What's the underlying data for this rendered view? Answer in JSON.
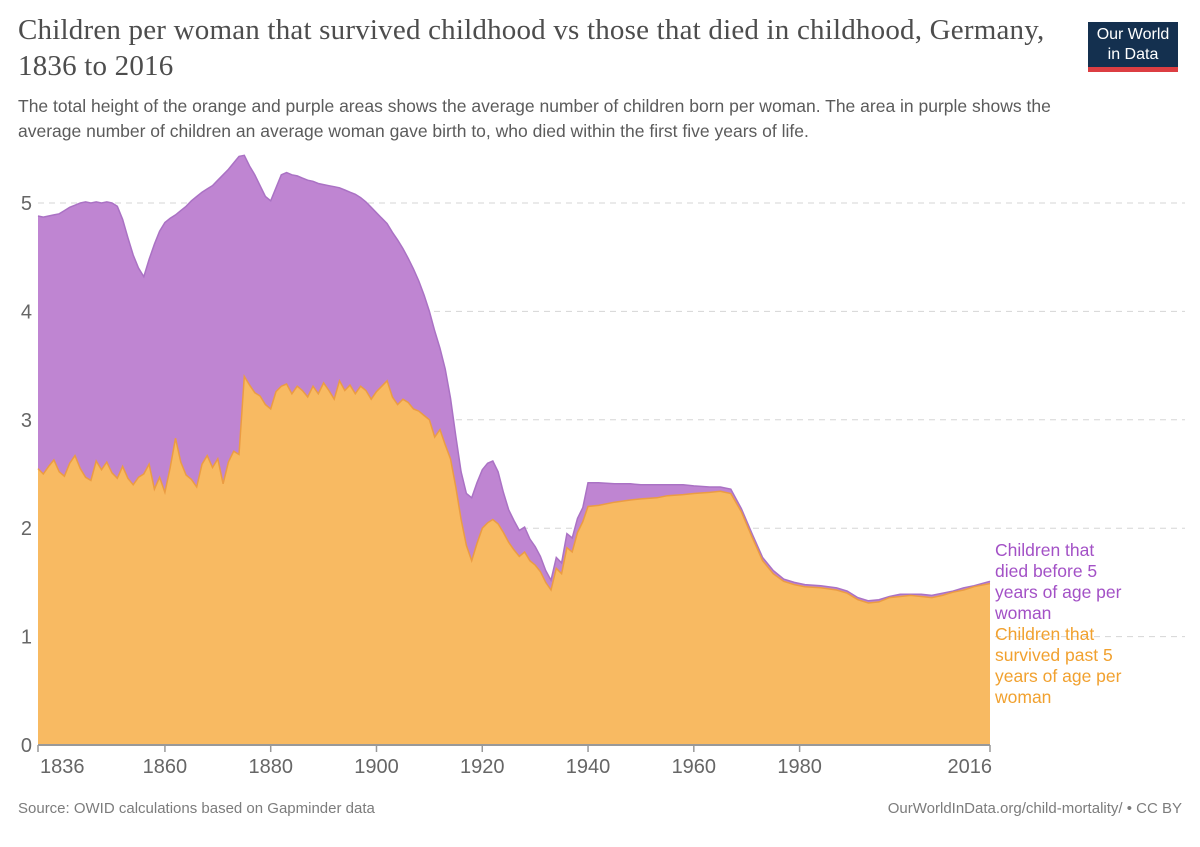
{
  "header": {
    "title": "Children per woman that survived childhood vs those that died in childhood, Germany, 1836 to 2016",
    "subtitle": "The total height of the orange and purple areas shows the average number of children born per woman. The area in purple shows the average number of children an average woman gave birth to, who died within the first five years of life.",
    "logo": {
      "line1": "Our World",
      "line2": "in Data",
      "bg": "#14304f",
      "accent": "#dc3e42"
    }
  },
  "legend": {
    "died": {
      "label": "Children that died before 5 years of age per woman",
      "color": "#a351c6"
    },
    "survived": {
      "label": "Children that survived past 5 years of age per woman",
      "color": "#f1a12f"
    }
  },
  "footer": {
    "source": "Source: OWID calculations based on Gapminder data",
    "link": "OurWorldInData.org/child-mortality/ • CC BY"
  },
  "chart_data": {
    "type": "area",
    "stacked": true,
    "title": "Children per woman that survived childhood vs those that died in childhood, Germany, 1836 to 2016",
    "xlabel": "",
    "ylabel": "",
    "xlim": [
      1836,
      2016
    ],
    "ylim": [
      0,
      5.5
    ],
    "x_ticks": [
      1836,
      1860,
      1880,
      1900,
      1920,
      1940,
      1960,
      1980,
      2016
    ],
    "y_ticks": [
      0,
      1,
      2,
      3,
      4,
      5
    ],
    "grid": "horizontal-dashed",
    "legend_position": "right",
    "axis_color": "#666666",
    "gridline_color": "#d5d5d5",
    "x": [
      1836,
      1837,
      1838,
      1839,
      1840,
      1841,
      1842,
      1843,
      1844,
      1845,
      1846,
      1847,
      1848,
      1849,
      1850,
      1851,
      1852,
      1853,
      1854,
      1855,
      1856,
      1857,
      1858,
      1859,
      1860,
      1861,
      1862,
      1863,
      1864,
      1865,
      1866,
      1867,
      1868,
      1869,
      1870,
      1871,
      1872,
      1873,
      1874,
      1875,
      1876,
      1877,
      1878,
      1879,
      1880,
      1881,
      1882,
      1883,
      1884,
      1885,
      1886,
      1887,
      1888,
      1889,
      1890,
      1891,
      1892,
      1893,
      1894,
      1895,
      1896,
      1897,
      1898,
      1899,
      1900,
      1901,
      1902,
      1903,
      1904,
      1905,
      1906,
      1907,
      1908,
      1909,
      1910,
      1911,
      1912,
      1913,
      1914,
      1915,
      1916,
      1917,
      1918,
      1919,
      1920,
      1921,
      1922,
      1923,
      1924,
      1925,
      1926,
      1927,
      1928,
      1929,
      1930,
      1931,
      1932,
      1933,
      1934,
      1935,
      1936,
      1937,
      1938,
      1939,
      1940,
      1942,
      1945,
      1948,
      1950,
      1953,
      1955,
      1958,
      1960,
      1963,
      1965,
      1967,
      1969,
      1971,
      1973,
      1975,
      1977,
      1979,
      1981,
      1984,
      1987,
      1989,
      1991,
      1993,
      1995,
      1997,
      1999,
      2001,
      2003,
      2005,
      2007,
      2009,
      2011,
      2013,
      2016
    ],
    "series": [
      {
        "name": "Children that survived past 5 years of age per woman",
        "fill": "#f8ba62",
        "stroke": "#eb9c43",
        "values": [
          2.55,
          2.5,
          2.57,
          2.63,
          2.52,
          2.48,
          2.6,
          2.67,
          2.55,
          2.47,
          2.44,
          2.62,
          2.54,
          2.61,
          2.51,
          2.46,
          2.57,
          2.46,
          2.4,
          2.47,
          2.5,
          2.59,
          2.36,
          2.47,
          2.33,
          2.56,
          2.83,
          2.61,
          2.49,
          2.45,
          2.38,
          2.59,
          2.67,
          2.56,
          2.64,
          2.41,
          2.61,
          2.71,
          2.68,
          3.4,
          3.32,
          3.25,
          3.22,
          3.14,
          3.1,
          3.26,
          3.31,
          3.33,
          3.24,
          3.31,
          3.27,
          3.21,
          3.31,
          3.24,
          3.34,
          3.27,
          3.19,
          3.36,
          3.27,
          3.32,
          3.24,
          3.31,
          3.27,
          3.19,
          3.26,
          3.31,
          3.36,
          3.21,
          3.14,
          3.19,
          3.16,
          3.1,
          3.08,
          3.04,
          3.0,
          2.84,
          2.91,
          2.77,
          2.64,
          2.38,
          2.08,
          1.84,
          1.7,
          1.86,
          2.0,
          2.05,
          2.08,
          2.04,
          1.96,
          1.87,
          1.8,
          1.74,
          1.78,
          1.7,
          1.66,
          1.6,
          1.5,
          1.43,
          1.63,
          1.58,
          1.82,
          1.78,
          1.96,
          2.06,
          2.2,
          2.21,
          2.24,
          2.26,
          2.27,
          2.28,
          2.3,
          2.31,
          2.32,
          2.33,
          2.34,
          2.32,
          2.15,
          1.92,
          1.7,
          1.58,
          1.51,
          1.48,
          1.46,
          1.45,
          1.43,
          1.4,
          1.34,
          1.31,
          1.32,
          1.36,
          1.37,
          1.38,
          1.37,
          1.36,
          1.38,
          1.41,
          1.43,
          1.46,
          1.49
        ]
      },
      {
        "name": "Children that died before 5 years of age per woman",
        "fill": "#bf85d2",
        "stroke": "#aa72c4",
        "values": [
          2.33,
          2.37,
          2.31,
          2.26,
          2.38,
          2.45,
          2.36,
          2.31,
          2.45,
          2.54,
          2.56,
          2.39,
          2.46,
          2.4,
          2.49,
          2.51,
          2.28,
          2.22,
          2.12,
          1.93,
          1.82,
          1.89,
          2.26,
          2.27,
          2.49,
          2.3,
          2.06,
          2.32,
          2.48,
          2.57,
          2.68,
          2.51,
          2.46,
          2.6,
          2.57,
          2.85,
          2.7,
          2.66,
          2.75,
          2.04,
          2.02,
          2.01,
          1.94,
          1.92,
          1.92,
          1.88,
          1.95,
          1.95,
          2.02,
          1.94,
          1.96,
          2.0,
          1.89,
          1.94,
          1.83,
          1.89,
          1.96,
          1.78,
          1.85,
          1.78,
          1.84,
          1.74,
          1.74,
          1.77,
          1.65,
          1.55,
          1.45,
          1.52,
          1.52,
          1.39,
          1.33,
          1.29,
          1.2,
          1.11,
          1.0,
          0.98,
          0.75,
          0.7,
          0.56,
          0.47,
          0.44,
          0.48,
          0.58,
          0.56,
          0.54,
          0.55,
          0.54,
          0.48,
          0.37,
          0.3,
          0.27,
          0.24,
          0.23,
          0.2,
          0.17,
          0.14,
          0.11,
          0.09,
          0.1,
          0.1,
          0.13,
          0.13,
          0.13,
          0.13,
          0.22,
          0.21,
          0.17,
          0.15,
          0.13,
          0.12,
          0.1,
          0.09,
          0.07,
          0.05,
          0.04,
          0.04,
          0.03,
          0.03,
          0.03,
          0.03,
          0.02,
          0.02,
          0.02,
          0.02,
          0.02,
          0.02,
          0.02,
          0.02,
          0.02,
          0.01,
          0.02,
          0.01,
          0.02,
          0.02,
          0.02,
          0.01,
          0.02,
          0.01,
          0.02
        ]
      }
    ],
    "note": "Stacked: purple (died) sits on top of orange (survived); total height = children born per woman."
  }
}
